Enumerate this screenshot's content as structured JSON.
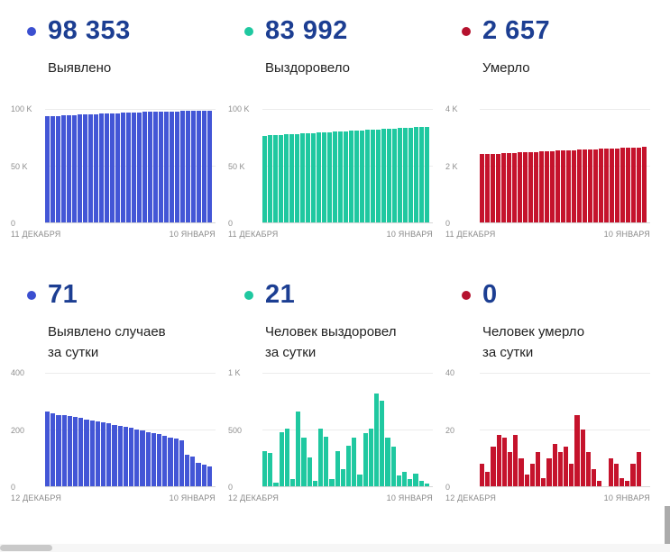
{
  "colors": {
    "kpi_text": "#1c3e92",
    "blue": "#4356d6",
    "green": "#1fc8a0",
    "red": "#c5132c",
    "axis_text": "#8f8f8f",
    "grid": "#ececec"
  },
  "chart_data": [
    {
      "type": "bar",
      "kpi": "98 353",
      "title": "Выявлено",
      "title_line2": "",
      "color": "#4356d6",
      "dot_color": "#3b4fd0",
      "ylim": [
        0,
        100000
      ],
      "yticks": [
        "0",
        "50 K",
        "100 K"
      ],
      "x_start_label": "11 ДЕКАБРЯ",
      "x_end_label": "10 ЯНВАРЯ",
      "values": [
        93403,
        93663,
        93918,
        94168,
        94413,
        94653,
        94888,
        95118,
        95343,
        95563,
        95778,
        95988,
        96193,
        96393,
        96588,
        96778,
        96953,
        97113,
        97263,
        97403,
        97533,
        97653,
        97763,
        97863,
        97953,
        98033,
        98103,
        98163,
        98213,
        98283,
        98353
      ]
    },
    {
      "type": "bar",
      "kpi": "83 992",
      "title": "Выздоровело",
      "title_line2": "",
      "color": "#1fc8a0",
      "dot_color": "#1fc8a0",
      "ylim": [
        0,
        100000
      ],
      "yticks": [
        "0",
        "50 K",
        "100 K"
      ],
      "x_start_label": "11 ДЕКАБРЯ",
      "x_end_label": "10 ЯНВАРЯ",
      "values": [
        76492,
        76760,
        77028,
        77296,
        77564,
        77832,
        78100,
        78368,
        78636,
        78904,
        79172,
        79440,
        79708,
        79976,
        80244,
        80512,
        80780,
        81048,
        81316,
        81584,
        81852,
        82120,
        82388,
        82656,
        82924,
        83192,
        83460,
        83700,
        83880,
        83971,
        83992
      ]
    },
    {
      "type": "bar",
      "kpi": "2 657",
      "title": "Умерло",
      "title_line2": "",
      "color": "#c5132c",
      "dot_color": "#b5122e",
      "ylim": [
        0,
        4000
      ],
      "yticks": [
        "0",
        "2 K",
        "4 K"
      ],
      "x_start_label": "11 ДЕКАБРЯ",
      "x_end_label": "10 ЯНВАРЯ",
      "values": [
        2400,
        2409,
        2418,
        2427,
        2436,
        2445,
        2454,
        2463,
        2472,
        2481,
        2490,
        2499,
        2508,
        2517,
        2526,
        2535,
        2544,
        2553,
        2561,
        2569,
        2577,
        2585,
        2593,
        2601,
        2609,
        2617,
        2625,
        2633,
        2641,
        2649,
        2657
      ]
    },
    {
      "type": "bar",
      "kpi": "71",
      "title": "Выявлено случаев",
      "title_line2": "за сутки",
      "color": "#4356d6",
      "dot_color": "#3b4fd0",
      "ylim": [
        0,
        400
      ],
      "yticks": [
        "0",
        "200",
        "400"
      ],
      "x_start_label": "12 ДЕКАБРЯ",
      "x_end_label": "10 ЯНВАРЯ",
      "values": [
        262,
        256,
        252,
        250,
        247,
        244,
        240,
        236,
        232,
        229,
        225,
        221,
        217,
        213,
        209,
        205,
        200,
        196,
        192,
        187,
        183,
        178,
        173,
        168,
        163,
        112,
        106,
        82,
        76,
        71
      ]
    },
    {
      "type": "bar",
      "kpi": "21",
      "title": "Человек выздоровел",
      "title_line2": "за сутки",
      "color": "#1fc8a0",
      "dot_color": "#1fc8a0",
      "ylim": [
        0,
        1000
      ],
      "yticks": [
        "0",
        "500",
        "1 K"
      ],
      "x_start_label": "12 ДЕКАБРЯ",
      "x_end_label": "10 ЯНВАРЯ",
      "values": [
        310,
        295,
        35,
        480,
        510,
        65,
        655,
        430,
        255,
        45,
        505,
        435,
        60,
        310,
        150,
        355,
        425,
        105,
        465,
        505,
        820,
        755,
        425,
        350,
        95,
        125,
        65,
        110,
        45,
        21
      ]
    },
    {
      "type": "bar",
      "kpi": "0",
      "title": "Человек умерло",
      "title_line2": "за сутки",
      "color": "#c5132c",
      "dot_color": "#b5122e",
      "ylim": [
        0,
        40
      ],
      "yticks": [
        "0",
        "20",
        "40"
      ],
      "x_start_label": "12 ДЕКАБРЯ",
      "x_end_label": "10 ЯНВАРЯ",
      "values": [
        8,
        5,
        14,
        18,
        17,
        12,
        18,
        10,
        4,
        8,
        12,
        3,
        10,
        15,
        12,
        14,
        8,
        25,
        20,
        12,
        6,
        2,
        0,
        10,
        8,
        3,
        2,
        8,
        12,
        0
      ]
    }
  ]
}
